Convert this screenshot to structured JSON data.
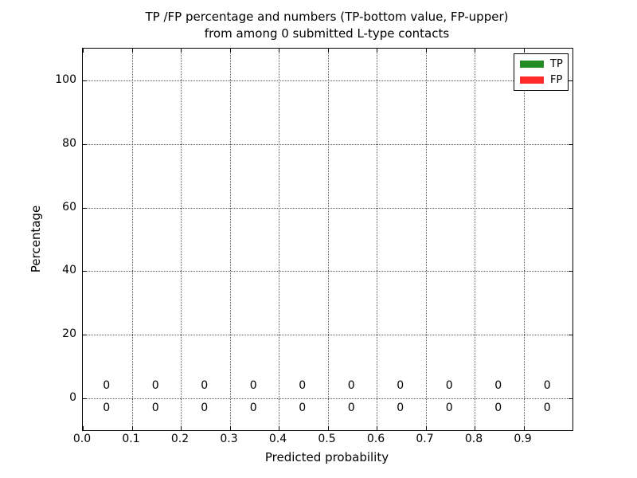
{
  "chart_data": {
    "type": "bar",
    "title_line1": "TP /FP percentage and numbers (TP-bottom value, FP-upper)",
    "title_line2": "from among 0 submitted L-type contacts",
    "xlabel": "Predicted probability",
    "ylabel": "Percentage",
    "xlim": [
      0.0,
      1.0
    ],
    "ylim": [
      -10,
      110
    ],
    "grid": "dotted",
    "x_tick_values": [
      0.0,
      0.1,
      0.2,
      0.3,
      0.4,
      0.5,
      0.6,
      0.7,
      0.8,
      0.9
    ],
    "x_tick_labels": [
      "0.0",
      "0.1",
      "0.2",
      "0.3",
      "0.4",
      "0.5",
      "0.6",
      "0.7",
      "0.8",
      "0.9"
    ],
    "y_ticks": [
      0,
      20,
      40,
      60,
      80,
      100
    ],
    "categories": [
      0.05,
      0.15,
      0.25,
      0.35,
      0.45,
      0.55,
      0.65,
      0.75,
      0.85,
      0.95
    ],
    "series": [
      {
        "name": "TP",
        "color": "#228b22",
        "values": [
          0,
          0,
          0,
          0,
          0,
          0,
          0,
          0,
          0,
          0
        ]
      },
      {
        "name": "FP",
        "color": "#ff2b2b",
        "values": [
          0,
          0,
          0,
          0,
          0,
          0,
          0,
          0,
          0,
          0
        ]
      }
    ],
    "legend": [
      {
        "label": "TP",
        "color": "#228b22"
      },
      {
        "label": "FP",
        "color": "#ff2b2b"
      }
    ],
    "legend_position": "upper right",
    "layout": {
      "fp_label_y": 3.8,
      "tp_label_y": -3.2
    }
  }
}
